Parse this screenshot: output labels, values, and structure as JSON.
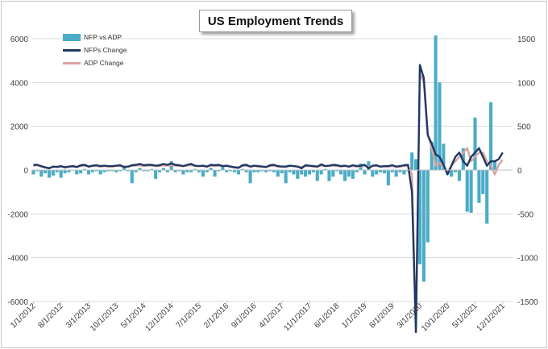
{
  "chart_data": {
    "type": "bar+line",
    "title": "US Employment Trends",
    "xlabel": "",
    "ylabel_left": "",
    "ylabel_right": "",
    "ylim_left": [
      -6000,
      6000
    ],
    "yticks_left": [
      6000,
      4000,
      2000,
      0,
      -2000,
      -4000,
      -6000
    ],
    "ylim_right": [
      -1500,
      1500
    ],
    "yticks_right": [
      1500,
      1000,
      500,
      0,
      -500,
      -1000,
      -1500
    ],
    "grid": "horizontal",
    "legend_position": "top-left",
    "x_tick_labels": [
      "1/1/2012",
      "8/1/2012",
      "3/1/2013",
      "10/1/2013",
      "5/1/2014",
      "12/1/2014",
      "7/1/2015",
      "2/1/2016",
      "9/1/2016",
      "4/1/2017",
      "11/1/2017",
      "6/1/2018",
      "1/1/2019",
      "8/1/2019",
      "3/1/2020",
      "10/1/2020",
      "5/1/2021",
      "12/1/2021"
    ],
    "months": [
      "2012-01",
      "2012-02",
      "2012-03",
      "2012-04",
      "2012-05",
      "2012-06",
      "2012-07",
      "2012-08",
      "2012-09",
      "2012-10",
      "2012-11",
      "2012-12",
      "2013-01",
      "2013-02",
      "2013-03",
      "2013-04",
      "2013-05",
      "2013-06",
      "2013-07",
      "2013-08",
      "2013-09",
      "2013-10",
      "2013-11",
      "2013-12",
      "2014-01",
      "2014-02",
      "2014-03",
      "2014-04",
      "2014-05",
      "2014-06",
      "2014-07",
      "2014-08",
      "2014-09",
      "2014-10",
      "2014-11",
      "2014-12",
      "2015-01",
      "2015-02",
      "2015-03",
      "2015-04",
      "2015-05",
      "2015-06",
      "2015-07",
      "2015-08",
      "2015-09",
      "2015-10",
      "2015-11",
      "2015-12",
      "2016-01",
      "2016-02",
      "2016-03",
      "2016-04",
      "2016-05",
      "2016-06",
      "2016-07",
      "2016-08",
      "2016-09",
      "2016-10",
      "2016-11",
      "2016-12",
      "2017-01",
      "2017-02",
      "2017-03",
      "2017-04",
      "2017-05",
      "2017-06",
      "2017-07",
      "2017-08",
      "2017-09",
      "2017-10",
      "2017-11",
      "2017-12",
      "2018-01",
      "2018-02",
      "2018-03",
      "2018-04",
      "2018-05",
      "2018-06",
      "2018-07",
      "2018-08",
      "2018-09",
      "2018-10",
      "2018-11",
      "2018-12",
      "2019-01",
      "2019-02",
      "2019-03",
      "2019-04",
      "2019-05",
      "2019-06",
      "2019-07",
      "2019-08",
      "2019-09",
      "2019-10",
      "2019-11",
      "2019-12",
      "2020-01",
      "2020-02",
      "2020-03",
      "2020-04",
      "2020-05",
      "2020-06",
      "2020-07",
      "2020-08",
      "2020-09",
      "2020-10",
      "2020-11",
      "2020-12",
      "2021-01",
      "2021-02",
      "2021-03",
      "2021-04",
      "2021-05",
      "2021-06",
      "2021-07",
      "2021-08",
      "2021-09",
      "2021-10",
      "2021-11",
      "2021-12",
      "2022-01",
      "2022-02"
    ],
    "series": [
      {
        "name": "NFP vs ADP",
        "type": "bar",
        "axis": "left",
        "color": "#4bacc6",
        "values": [
          -200,
          -50,
          -300,
          -150,
          -350,
          -250,
          -100,
          -350,
          -150,
          -100,
          -20,
          -200,
          -150,
          50,
          -200,
          -100,
          -50,
          -200,
          -100,
          -50,
          -50,
          -100,
          -50,
          150,
          -50,
          -600,
          -100,
          100,
          -50,
          -50,
          50,
          -400,
          -100,
          100,
          -100,
          400,
          -100,
          -50,
          -200,
          -100,
          -100,
          50,
          -100,
          -300,
          -100,
          100,
          -300,
          -50,
          200,
          -100,
          -50,
          -100,
          -200,
          50,
          -100,
          -600,
          -100,
          -100,
          -50,
          -100,
          -50,
          -100,
          -300,
          -150,
          -600,
          -100,
          -200,
          -400,
          -200,
          -300,
          -200,
          -100,
          -500,
          -200,
          50,
          -500,
          -300,
          -50,
          -200,
          -500,
          -300,
          -400,
          -100,
          300,
          -200,
          400,
          -300,
          -200,
          -100,
          -150,
          -700,
          -100,
          -300,
          -100,
          -200,
          -50,
          800,
          500,
          -4300,
          -5100,
          -3300,
          1300,
          6150,
          4000,
          1200,
          -200,
          -300,
          -100,
          -500,
          1000,
          -1900,
          -1950,
          2400,
          -1500,
          -1100,
          -2450,
          3100,
          400
        ]
      },
      {
        "name": "NFPs Change",
        "type": "line",
        "axis": "right",
        "color": "#1f3864",
        "values": [
          60,
          60,
          45,
          30,
          20,
          40,
          35,
          45,
          30,
          40,
          45,
          35,
          55,
          60,
          40,
          50,
          55,
          45,
          50,
          45,
          45,
          50,
          55,
          35,
          40,
          55,
          60,
          70,
          55,
          60,
          60,
          50,
          55,
          70,
          60,
          75,
          60,
          55,
          45,
          60,
          70,
          50,
          45,
          50,
          40,
          60,
          55,
          60,
          45,
          50,
          40,
          30,
          25,
          55,
          60,
          40,
          50,
          45,
          40,
          35,
          55,
          60,
          45,
          40,
          40,
          50,
          45,
          40,
          20,
          55,
          50,
          45,
          40,
          65,
          45,
          50,
          60,
          55,
          45,
          50,
          40,
          55,
          45,
          50,
          60,
          20,
          50,
          55,
          40,
          45,
          45,
          55,
          40,
          45,
          55,
          60,
          -250,
          -1850,
          1200,
          1050,
          400,
          300,
          180,
          150,
          60,
          -50,
          50,
          150,
          200,
          100,
          50,
          150,
          200,
          250,
          150,
          50,
          100,
          100,
          125,
          200
        ]
      },
      {
        "name": "ADP Change",
        "type": "line",
        "axis": "right",
        "color": "#d9a3a3",
        "values": [
          45,
          55,
          40,
          30,
          25,
          35,
          40,
          40,
          35,
          40,
          40,
          35,
          45,
          50,
          40,
          45,
          45,
          40,
          45,
          40,
          40,
          45,
          45,
          40,
          40,
          50,
          50,
          55,
          45,
          50,
          50,
          45,
          45,
          55,
          50,
          55,
          50,
          45,
          45,
          50,
          55,
          45,
          45,
          45,
          40,
          50,
          45,
          50,
          45,
          45,
          40,
          35,
          30,
          45,
          50,
          40,
          45,
          40,
          40,
          35,
          45,
          50,
          40,
          40,
          40,
          45,
          45,
          40,
          35,
          45,
          45,
          40,
          40,
          50,
          45,
          45,
          50,
          45,
          40,
          45,
          40,
          45,
          40,
          45,
          50,
          35,
          45,
          45,
          40,
          40,
          40,
          45,
          40,
          40,
          45,
          45,
          -50,
          -1850,
          1100,
          1000,
          400,
          250,
          50,
          80,
          40,
          -20,
          50,
          100,
          150,
          200,
          250,
          100,
          150,
          200,
          200,
          100,
          60,
          -50,
          60,
          120
        ]
      }
    ]
  }
}
